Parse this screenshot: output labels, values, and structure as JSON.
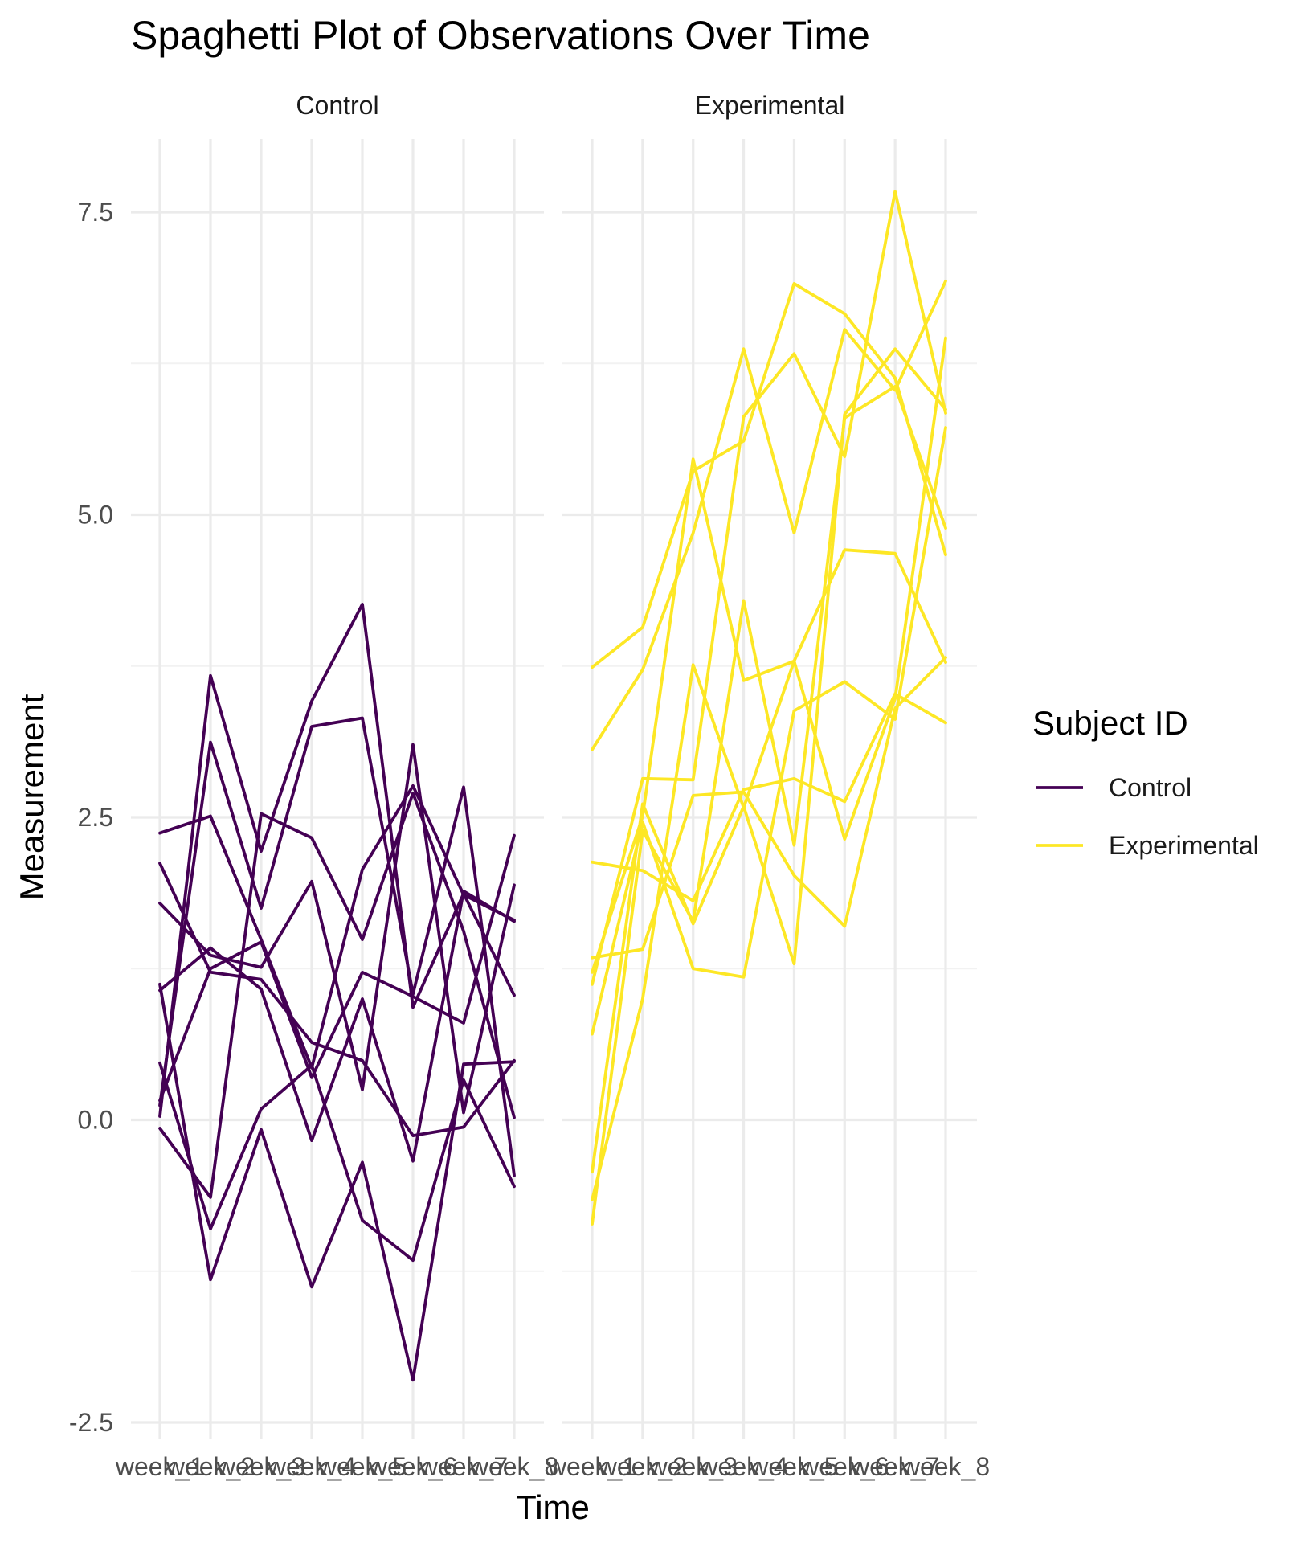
{
  "chart_data": {
    "type": "line",
    "title": "Spaghetti Plot of Observations Over Time",
    "xlabel": "Time",
    "ylabel": "Measurement",
    "legend_title": "Subject ID",
    "legend_position": "right",
    "grid": true,
    "ylim": [
      -2.5,
      8.5
    ],
    "y_ticks": [
      -2.5,
      0.0,
      2.5,
      5.0,
      7.5
    ],
    "y_tick_labels": [
      "-2.5",
      "0.0",
      "2.5",
      "5.0",
      "7.5"
    ],
    "categories": [
      "week_1",
      "week_2",
      "week_3",
      "week_4",
      "week_5",
      "week_6",
      "week_7",
      "week_8"
    ],
    "colors": {
      "Control": "#440154",
      "Experimental": "#fde725"
    },
    "legend": [
      {
        "label": "Control",
        "color": "#440154"
      },
      {
        "label": "Experimental",
        "color": "#fde725"
      }
    ],
    "panels": [
      {
        "label": "Control",
        "group": "Control",
        "series": [
          {
            "values": [
              2.37,
              2.51,
              1.49,
              0.43,
              2.07,
              2.76,
              1.86,
              1.65
            ]
          },
          {
            "values": [
              0.03,
              3.67,
              2.22,
              3.46,
              4.26,
              0.93,
              1.87,
              1.03
            ]
          },
          {
            "values": [
              0.12,
              3.12,
              1.75,
              3.25,
              3.32,
              1.04,
              2.75,
              -0.46
            ]
          },
          {
            "values": [
              0.16,
              1.25,
              1.47,
              0.35,
              1.22,
              1.02,
              0.8,
              2.35
            ]
          },
          {
            "values": [
              2.12,
              1.22,
              1.16,
              0.64,
              0.49,
              -0.13,
              -0.06,
              0.49
            ]
          },
          {
            "values": [
              1.79,
              1.36,
              1.26,
              1.97,
              0.25,
              3.1,
              0.06,
              1.94
            ]
          },
          {
            "values": [
              1.12,
              -1.32,
              -0.08,
              -1.38,
              -0.35,
              -2.15,
              0.46,
              0.48
            ]
          },
          {
            "values": [
              -0.07,
              -0.64,
              2.53,
              2.33,
              1.49,
              2.7,
              1.56,
              0.02
            ]
          },
          {
            "values": [
              0.47,
              -0.9,
              0.09,
              0.45,
              -0.83,
              -1.16,
              0.33,
              -0.55
            ]
          },
          {
            "values": [
              1.07,
              1.42,
              1.08,
              -0.17,
              1.0,
              -0.34,
              1.89,
              1.64
            ]
          }
        ]
      },
      {
        "label": "Experimental",
        "group": "Experimental",
        "series": [
          {
            "values": [
              3.74,
              4.07,
              5.36,
              5.61,
              6.91,
              6.66,
              6.13,
              4.67
            ]
          },
          {
            "values": [
              3.06,
              3.72,
              4.85,
              6.37,
              4.85,
              6.53,
              6.03,
              6.93
            ]
          },
          {
            "values": [
              2.13,
              2.06,
              1.81,
              2.73,
              2.82,
              2.63,
              3.52,
              3.28
            ]
          },
          {
            "values": [
              1.34,
              1.41,
              2.68,
              2.71,
              2.02,
              1.6,
              3.4,
              3.82
            ]
          },
          {
            "values": [
              1.12,
              2.82,
              2.81,
              5.81,
              6.33,
              5.48,
              7.67,
              5.84
            ]
          },
          {
            "values": [
              0.71,
              2.46,
              1.25,
              1.18,
              3.38,
              3.62,
              3.31,
              5.72
            ]
          },
          {
            "values": [
              -0.43,
              2.61,
              1.62,
              2.59,
              1.29,
              5.83,
              6.37,
              5.87
            ]
          },
          {
            "values": [
              -0.66,
              1.0,
              3.76,
              2.58,
              3.79,
              4.71,
              4.68,
              3.78
            ]
          },
          {
            "values": [
              -0.86,
              2.39,
              1.64,
              4.29,
              2.27,
              5.8,
              6.06,
              4.89
            ]
          },
          {
            "values": [
              1.22,
              2.51,
              5.46,
              3.63,
              3.79,
              2.32,
              3.48,
              6.46
            ]
          }
        ]
      }
    ]
  }
}
